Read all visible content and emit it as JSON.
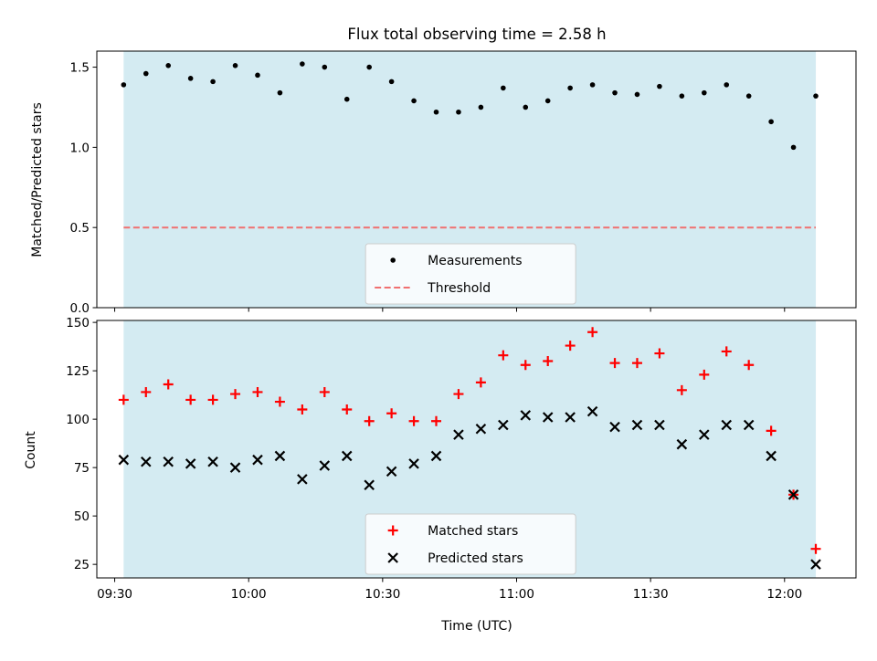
{
  "chart_data": [
    {
      "type": "scatter",
      "title": "Flux total observing time = 2.58 h",
      "xlabel": "",
      "ylabel": "Matched/Predicted stars",
      "xlim": [
        "09:26",
        "12:16"
      ],
      "ylim": [
        0,
        1.6
      ],
      "yticks": [
        0,
        0.5,
        1.0,
        1.5
      ],
      "ytick_labels": [
        "0.0",
        "0.5",
        "1.0",
        "1.5"
      ],
      "shaded_span": [
        "09:32",
        "12:07"
      ],
      "shade_color": "#add8e6",
      "threshold": 0.5,
      "legend_position": "lower-center",
      "series": [
        {
          "name": "Measurements",
          "marker": "dot",
          "color": "#000000",
          "x": [
            "09:32",
            "09:37",
            "09:42",
            "09:47",
            "09:52",
            "09:57",
            "10:02",
            "10:07",
            "10:12",
            "10:17",
            "10:22",
            "10:27",
            "10:32",
            "10:37",
            "10:42",
            "10:47",
            "10:52",
            "10:57",
            "11:02",
            "11:07",
            "11:12",
            "11:17",
            "11:22",
            "11:27",
            "11:32",
            "11:37",
            "11:42",
            "11:47",
            "11:52",
            "11:57",
            "12:02",
            "12:07"
          ],
          "y": [
            1.39,
            1.46,
            1.51,
            1.43,
            1.41,
            1.51,
            1.45,
            1.34,
            1.52,
            1.5,
            1.3,
            1.5,
            1.41,
            1.29,
            1.22,
            1.22,
            1.25,
            1.37,
            1.25,
            1.29,
            1.37,
            1.39,
            1.34,
            1.33,
            1.38,
            1.32,
            1.34,
            1.39,
            1.32,
            1.16,
            1.0,
            1.32
          ]
        },
        {
          "name": "Threshold",
          "marker": "dashed-line",
          "color": "#f07070"
        }
      ]
    },
    {
      "type": "scatter",
      "title": "",
      "xlabel": "Time (UTC)",
      "ylabel": "Count",
      "xlim": [
        "09:26",
        "12:16"
      ],
      "ylim": [
        18,
        151
      ],
      "yticks": [
        25,
        50,
        75,
        100,
        125,
        150
      ],
      "ytick_labels": [
        "25",
        "50",
        "75",
        "100",
        "125",
        "150"
      ],
      "xticks": [
        "09:30",
        "10:00",
        "10:30",
        "11:00",
        "11:30",
        "12:00"
      ],
      "xtick_labels": [
        "09:30",
        "10:00",
        "10:30",
        "11:00",
        "11:30",
        "12:00"
      ],
      "shaded_span": [
        "09:32",
        "12:07"
      ],
      "shade_color": "#add8e6",
      "legend_position": "lower-center",
      "series": [
        {
          "name": "Matched stars",
          "marker": "plus",
          "color": "#ff0000",
          "x": [
            "09:32",
            "09:37",
            "09:42",
            "09:47",
            "09:52",
            "09:57",
            "10:02",
            "10:07",
            "10:12",
            "10:17",
            "10:22",
            "10:27",
            "10:32",
            "10:37",
            "10:42",
            "10:47",
            "10:52",
            "10:57",
            "11:02",
            "11:07",
            "11:12",
            "11:17",
            "11:22",
            "11:27",
            "11:32",
            "11:37",
            "11:42",
            "11:47",
            "11:52",
            "11:57",
            "12:02",
            "12:07"
          ],
          "y": [
            110,
            114,
            118,
            110,
            110,
            113,
            114,
            109,
            105,
            114,
            105,
            99,
            103,
            99,
            99,
            113,
            119,
            133,
            128,
            130,
            138,
            145,
            129,
            129,
            134,
            115,
            123,
            135,
            128,
            94,
            61,
            33
          ]
        },
        {
          "name": "Predicted stars",
          "marker": "x",
          "color": "#000000",
          "x": [
            "09:32",
            "09:37",
            "09:42",
            "09:47",
            "09:52",
            "09:57",
            "10:02",
            "10:07",
            "10:12",
            "10:17",
            "10:22",
            "10:27",
            "10:32",
            "10:37",
            "10:42",
            "10:47",
            "10:52",
            "10:57",
            "11:02",
            "11:07",
            "11:12",
            "11:17",
            "11:22",
            "11:27",
            "11:32",
            "11:37",
            "11:42",
            "11:47",
            "11:52",
            "11:57",
            "12:02",
            "12:07"
          ],
          "y": [
            79,
            78,
            78,
            77,
            78,
            75,
            79,
            81,
            69,
            76,
            81,
            66,
            73,
            77,
            81,
            92,
            95,
            97,
            102,
            101,
            101,
            104,
            96,
            97,
            97,
            87,
            92,
            97,
            97,
            81,
            61,
            25
          ]
        }
      ]
    }
  ]
}
